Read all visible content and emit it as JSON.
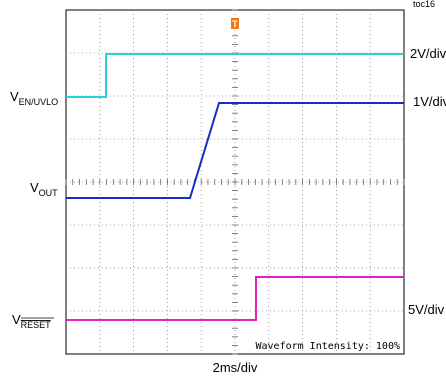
{
  "figure": {
    "toc": "toc16",
    "channels": [
      {
        "base": "V",
        "sub": "EN/UVLO",
        "scale": "2V/div"
      },
      {
        "base": "V",
        "sub": "OUT",
        "scale": "1V/div"
      },
      {
        "base": "V",
        "sub": "RESET",
        "scale": "5V/div"
      }
    ],
    "timebase": "2ms/div",
    "intensity": "Waveform Intensity: 100%"
  }
}
